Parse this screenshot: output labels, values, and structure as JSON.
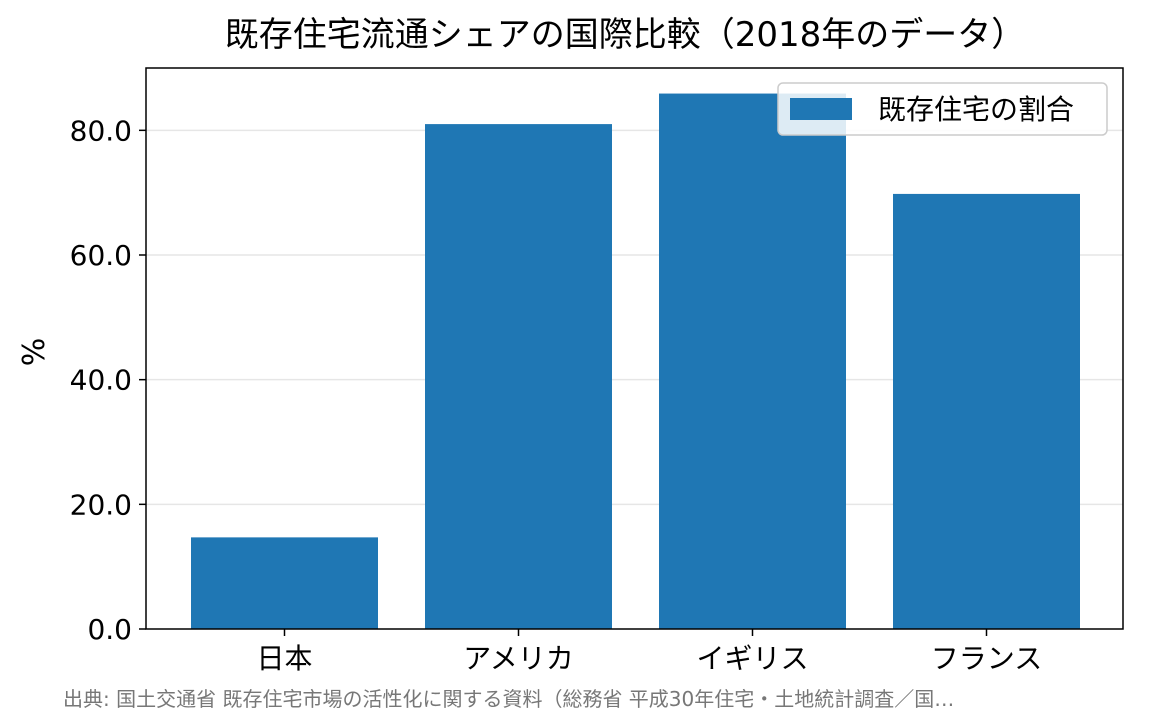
{
  "chart_data": {
    "type": "bar",
    "title": "既存住宅流通シェアの国際比較（2018年のデータ）",
    "xlabel": "",
    "ylabel": "%",
    "categories": [
      "日本",
      "アメリカ",
      "イギリス",
      "フランス"
    ],
    "series": [
      {
        "name": "既存住宅の割合",
        "values": [
          14.7,
          81.0,
          85.9,
          69.8
        ],
        "color": "#1f77b4"
      }
    ],
    "ylim": [
      0,
      90
    ],
    "yticks": [
      0.0,
      20.0,
      40.0,
      60.0,
      80.0
    ],
    "ytick_labels": [
      "0.0",
      "20.0",
      "40.0",
      "60.0",
      "80.0"
    ],
    "grid": "horizontal",
    "legend_position": "top-right"
  },
  "source_note": "出典: 国土交通省 既存住宅市場の活性化に関する資料（総務省 平成30年住宅・土地統計調査／国…"
}
